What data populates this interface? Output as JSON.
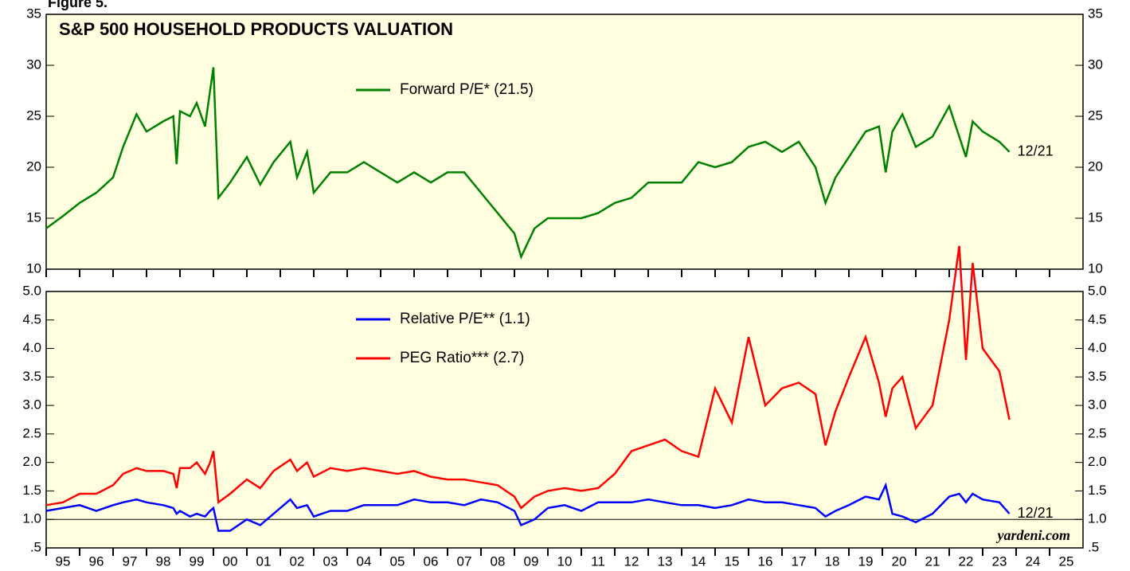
{
  "figure_label": "Figure 5.",
  "chart_data": [
    {
      "type": "line",
      "title": "S&P 500 HOUSEHOLD PRODUCTS VALUATION",
      "x": [
        1995.0,
        1995.5,
        1996.0,
        1996.5,
        1997.0,
        1997.3,
        1997.7,
        1998.0,
        1998.5,
        1998.8,
        1998.9,
        1999.0,
        1999.3,
        1999.5,
        1999.75,
        1999.9,
        2000.0,
        2000.15,
        2000.5,
        2001.0,
        2001.4,
        2001.8,
        2002.3,
        2002.5,
        2002.8,
        2003.0,
        2003.5,
        2004.0,
        2004.5,
        2005.0,
        2005.5,
        2006.0,
        2006.5,
        2007.0,
        2007.5,
        2008.0,
        2008.5,
        2009.0,
        2009.2,
        2009.6,
        2010.0,
        2010.5,
        2011.0,
        2011.5,
        2012.0,
        2012.5,
        2013.0,
        2013.5,
        2014.0,
        2014.5,
        2015.0,
        2015.5,
        2016.0,
        2016.5,
        2017.0,
        2017.5,
        2018.0,
        2018.3,
        2018.6,
        2019.0,
        2019.5,
        2019.9,
        2020.1,
        2020.3,
        2020.6,
        2021.0,
        2021.5,
        2022.0,
        2022.3,
        2022.5,
        2022.7,
        2023.0,
        2023.5,
        2023.8
      ],
      "series": [
        {
          "name": "Forward P/E* (21.5)",
          "color": "#008000",
          "values": [
            14,
            15.2,
            16.5,
            17.5,
            19,
            22,
            25.2,
            23.5,
            24.5,
            25,
            20.3,
            25.5,
            25,
            26.3,
            24,
            27.5,
            29.8,
            17,
            18.5,
            21,
            18.3,
            20.5,
            22.5,
            19,
            21.5,
            17.5,
            19.5,
            19.5,
            20.5,
            19.5,
            18.5,
            19.5,
            18.5,
            19.5,
            19.5,
            17.5,
            15.5,
            13.5,
            11.2,
            14,
            15,
            15,
            15,
            15.5,
            16.5,
            17,
            18.5,
            18.5,
            18.5,
            20.5,
            20,
            20.5,
            22,
            22.5,
            21.5,
            22.5,
            20,
            16.5,
            19,
            21,
            23.5,
            24,
            19.5,
            23.5,
            25.2,
            22,
            23,
            26,
            23,
            21,
            24.5,
            23.5,
            22.5,
            21.5
          ],
          "end_label": "12/21"
        }
      ],
      "xlim": [
        1995,
        2026
      ],
      "ylim": [
        10,
        35
      ],
      "yticks": [
        10,
        15,
        20,
        25,
        30,
        35
      ]
    },
    {
      "type": "line",
      "x": [
        1995.0,
        1995.5,
        1996.0,
        1996.5,
        1997.0,
        1997.3,
        1997.7,
        1998.0,
        1998.5,
        1998.8,
        1998.9,
        1999.0,
        1999.3,
        1999.5,
        1999.75,
        1999.9,
        2000.0,
        2000.15,
        2000.5,
        2001.0,
        2001.4,
        2001.8,
        2002.3,
        2002.5,
        2002.8,
        2003.0,
        2003.5,
        2004.0,
        2004.5,
        2005.0,
        2005.5,
        2006.0,
        2006.5,
        2007.0,
        2007.5,
        2008.0,
        2008.5,
        2009.0,
        2009.2,
        2009.6,
        2010.0,
        2010.5,
        2011.0,
        2011.5,
        2012.0,
        2012.5,
        2013.0,
        2013.5,
        2014.0,
        2014.5,
        2015.0,
        2015.5,
        2016.0,
        2016.5,
        2017.0,
        2017.5,
        2018.0,
        2018.3,
        2018.6,
        2019.0,
        2019.5,
        2019.9,
        2020.1,
        2020.3,
        2020.6,
        2021.0,
        2021.5,
        2022.0,
        2022.3,
        2022.5,
        2022.7,
        2023.0,
        2023.5,
        2023.8
      ],
      "series": [
        {
          "name": "Relative P/E** (1.1)",
          "color": "#0000ff",
          "values": [
            1.15,
            1.2,
            1.25,
            1.15,
            1.25,
            1.3,
            1.35,
            1.3,
            1.25,
            1.2,
            1.1,
            1.15,
            1.05,
            1.1,
            1.05,
            1.15,
            1.2,
            0.8,
            0.8,
            1.0,
            0.9,
            1.1,
            1.35,
            1.2,
            1.25,
            1.05,
            1.15,
            1.15,
            1.25,
            1.25,
            1.25,
            1.35,
            1.3,
            1.3,
            1.25,
            1.35,
            1.3,
            1.15,
            0.9,
            1.0,
            1.2,
            1.25,
            1.15,
            1.3,
            1.3,
            1.3,
            1.35,
            1.3,
            1.25,
            1.25,
            1.2,
            1.25,
            1.35,
            1.3,
            1.3,
            1.25,
            1.2,
            1.05,
            1.15,
            1.25,
            1.4,
            1.35,
            1.6,
            1.1,
            1.05,
            0.95,
            1.1,
            1.4,
            1.45,
            1.3,
            1.45,
            1.35,
            1.3,
            1.1
          ],
          "end_label": "12/21"
        },
        {
          "name": "PEG Ratio*** (2.7)",
          "color": "#ff0000",
          "values": [
            1.25,
            1.3,
            1.45,
            1.45,
            1.6,
            1.8,
            1.9,
            1.85,
            1.85,
            1.8,
            1.55,
            1.9,
            1.9,
            2.0,
            1.8,
            2.0,
            2.2,
            1.3,
            1.45,
            1.7,
            1.55,
            1.85,
            2.05,
            1.85,
            2.0,
            1.75,
            1.9,
            1.85,
            1.9,
            1.85,
            1.8,
            1.85,
            1.75,
            1.7,
            1.7,
            1.65,
            1.6,
            1.4,
            1.2,
            1.4,
            1.5,
            1.55,
            1.5,
            1.55,
            1.8,
            2.2,
            2.3,
            2.4,
            2.2,
            2.1,
            3.3,
            2.7,
            4.2,
            3.0,
            3.3,
            3.4,
            3.2,
            2.3,
            2.9,
            3.5,
            4.2,
            3.4,
            2.8,
            3.3,
            3.5,
            2.6,
            3.0,
            4.5,
            5.8,
            3.8,
            5.5,
            4.0,
            3.6,
            2.75
          ]
        }
      ],
      "xlim": [
        1995,
        2026
      ],
      "xticks": [
        {
          "value": 1995,
          "label": "95"
        },
        {
          "value": 1996,
          "label": "96"
        },
        {
          "value": 1997,
          "label": "97"
        },
        {
          "value": 1998,
          "label": "98"
        },
        {
          "value": 1999,
          "label": "99"
        },
        {
          "value": 2000,
          "label": "00"
        },
        {
          "value": 2001,
          "label": "01"
        },
        {
          "value": 2002,
          "label": "02"
        },
        {
          "value": 2003,
          "label": "03"
        },
        {
          "value": 2004,
          "label": "04"
        },
        {
          "value": 2005,
          "label": "05"
        },
        {
          "value": 2006,
          "label": "06"
        },
        {
          "value": 2007,
          "label": "07"
        },
        {
          "value": 2008,
          "label": "08"
        },
        {
          "value": 2009,
          "label": "09"
        },
        {
          "value": 2010,
          "label": "10"
        },
        {
          "value": 2011,
          "label": "11"
        },
        {
          "value": 2012,
          "label": "12"
        },
        {
          "value": 2013,
          "label": "13"
        },
        {
          "value": 2014,
          "label": "14"
        },
        {
          "value": 2015,
          "label": "15"
        },
        {
          "value": 2016,
          "label": "16"
        },
        {
          "value": 2017,
          "label": "17"
        },
        {
          "value": 2018,
          "label": "18"
        },
        {
          "value": 2019,
          "label": "19"
        },
        {
          "value": 2020,
          "label": "20"
        },
        {
          "value": 2021,
          "label": "21"
        },
        {
          "value": 2022,
          "label": "22"
        },
        {
          "value": 2023,
          "label": "23"
        },
        {
          "value": 2024,
          "label": "24"
        },
        {
          "value": 2025,
          "label": "25"
        }
      ],
      "ylim": [
        0.5,
        5
      ],
      "yticks": [
        {
          "value": 0.5,
          "label": ".5"
        },
        {
          "value": 1,
          "label": "1.0"
        },
        {
          "value": 1.5,
          "label": "1.5"
        },
        {
          "value": 2,
          "label": "2.0"
        },
        {
          "value": 2.5,
          "label": "2.5"
        },
        {
          "value": 3,
          "label": "3.0"
        },
        {
          "value": 3.5,
          "label": "3.5"
        },
        {
          "value": 4,
          "label": "4.0"
        },
        {
          "value": 4.5,
          "label": "4.5"
        },
        {
          "value": 5,
          "label": "5.0"
        }
      ],
      "reference_line": 1,
      "source": "yardeni.com"
    }
  ]
}
